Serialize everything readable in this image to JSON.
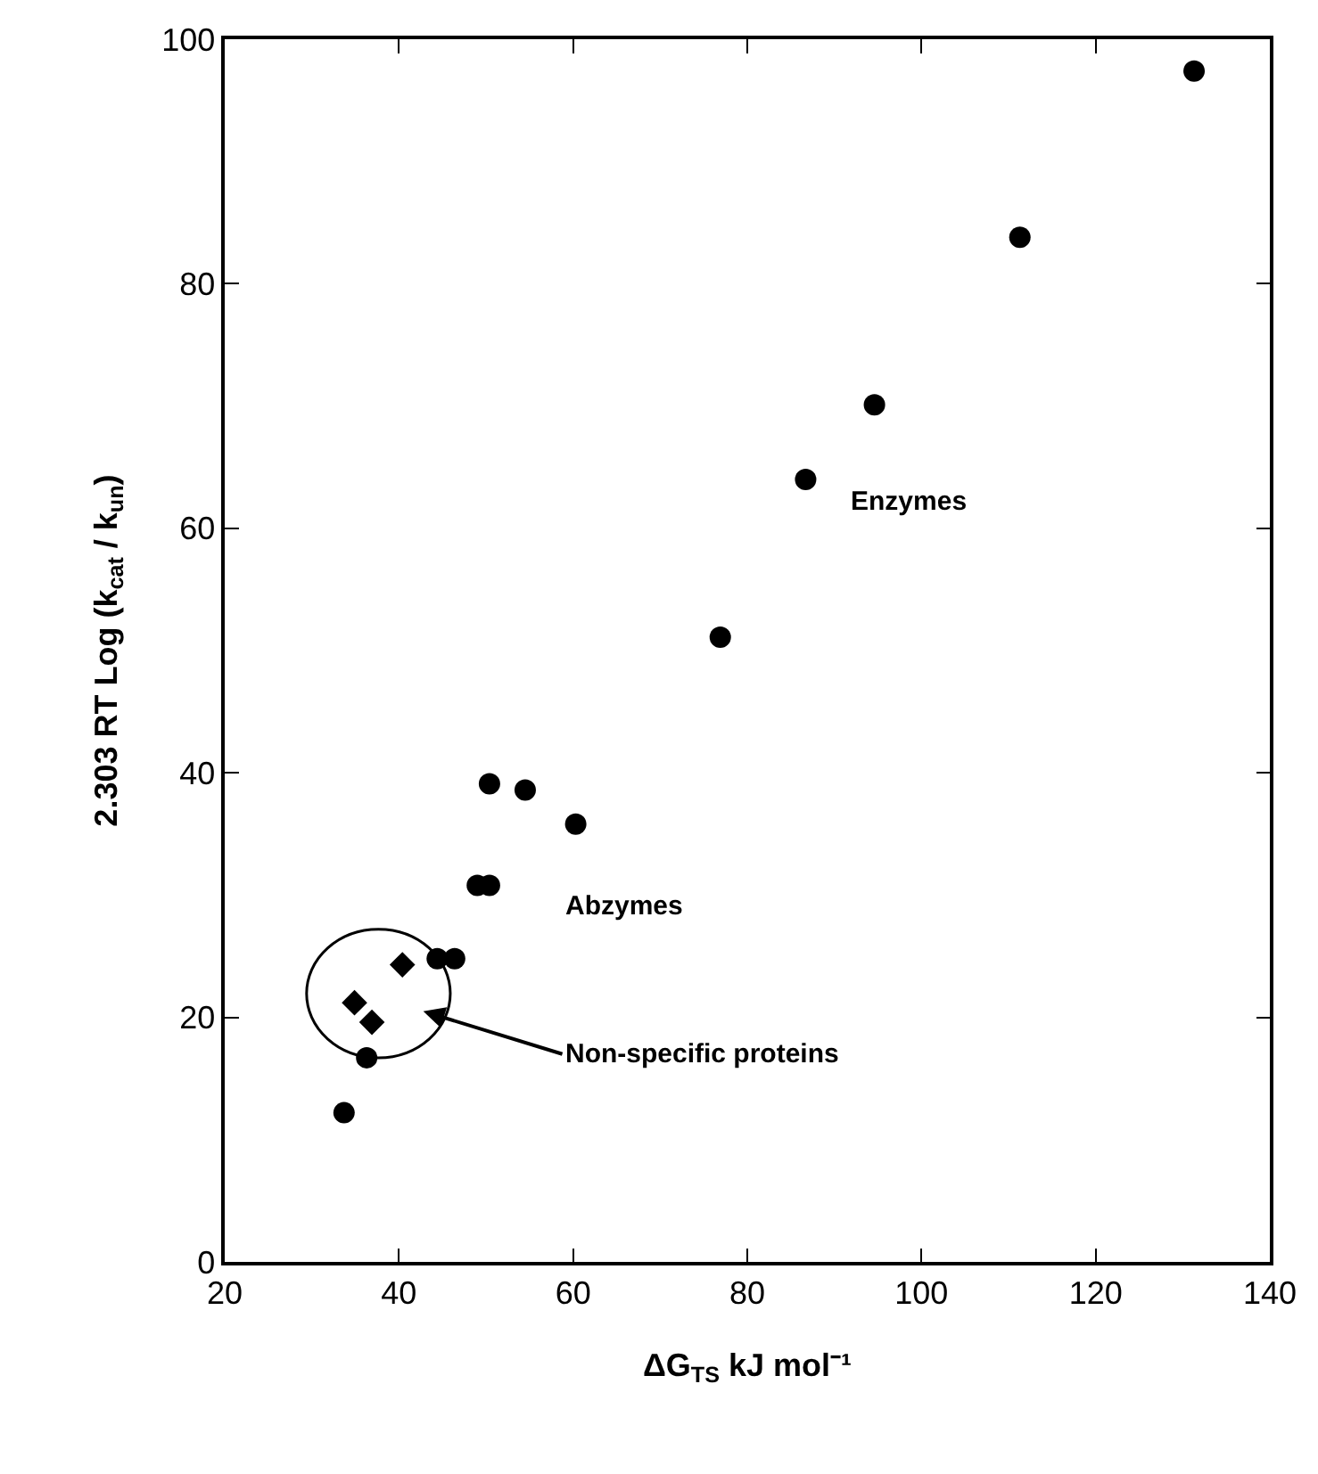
{
  "chart_data": {
    "type": "scatter",
    "xlabel": "ΔG$_{TS}$ kJ mol⁻¹",
    "ylabel": "2.303 RT Log (k$_{cat}$ / k$_{un}$)",
    "xlim": [
      20,
      140
    ],
    "xticks": [
      20,
      40,
      60,
      80,
      100,
      120,
      140
    ],
    "ylim": [
      0,
      100
    ],
    "yticks": [
      0,
      20,
      40,
      60,
      80,
      100
    ],
    "series": [
      {
        "color": "#000000",
        "marker": "circle",
        "x": [
          33.7,
          36.3,
          44.4,
          46.4,
          49.0,
          50.4,
          50.4,
          54.5,
          60.3,
          76.9,
          86.7,
          94.6,
          111.3,
          131.3
        ],
        "values": [
          12.2,
          16.7,
          24.8,
          24.8,
          30.8,
          30.8,
          39.1,
          38.6,
          35.8,
          51.1,
          64.0,
          70.1,
          83.8,
          97.4
        ]
      },
      {
        "color": "#000000",
        "marker": "diamond",
        "x": [
          34.9,
          36.9,
          40.4
        ],
        "values": [
          21.2,
          19.6,
          24.3
        ]
      }
    ],
    "annotations": [
      "Enzymes",
      "Abzymes",
      "Non-specific proteins"
    ]
  }
}
